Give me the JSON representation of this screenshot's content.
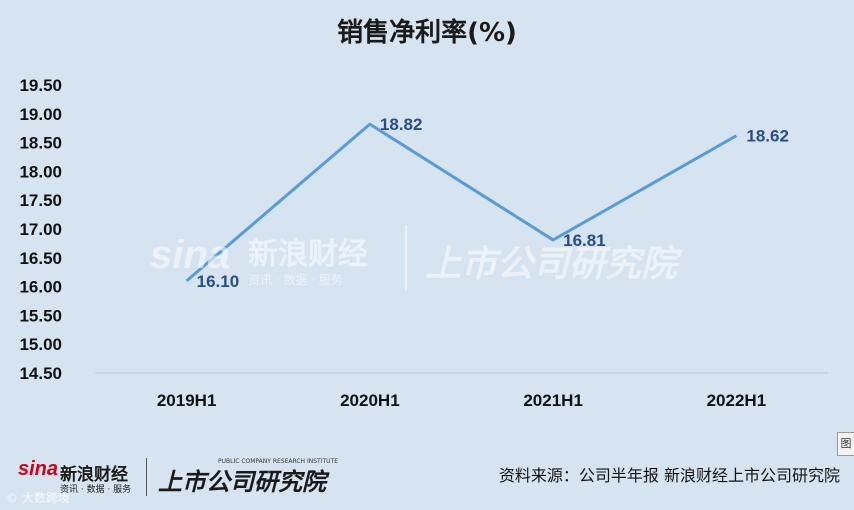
{
  "chart_data": {
    "type": "line",
    "title": "销售净利率(%)",
    "categories": [
      "2019H1",
      "2020H1",
      "2021H1",
      "2022H1"
    ],
    "values": [
      16.1,
      18.82,
      16.81,
      18.62
    ],
    "data_labels": [
      "16.10",
      "18.82",
      "16.81",
      "18.62"
    ],
    "y_ticks": [
      "19.50",
      "19.00",
      "18.50",
      "18.00",
      "17.50",
      "17.00",
      "16.50",
      "16.00",
      "15.50",
      "15.00",
      "14.50"
    ],
    "ylim": [
      14.5,
      19.5
    ],
    "grid": false,
    "line_color": "#5b9bd5",
    "background": "#d6e4f1"
  },
  "watermark": {
    "sina": "sina",
    "name": "新浪财经",
    "sub": "资讯 · 数据 · 服务",
    "institute": "上市公司研究院"
  },
  "footer": {
    "sina": "sina",
    "name": "新浪财经",
    "sub": "资讯 · 数据 · 服务",
    "institute": "上市公司研究院",
    "institute_en": "PUBLIC COMPANY RESEARCH INSTITUTE",
    "source": "资料来源：公司半年报 新浪财经上市公司研究院",
    "corner_tab": "图",
    "copyright": "© 大数跨境"
  }
}
